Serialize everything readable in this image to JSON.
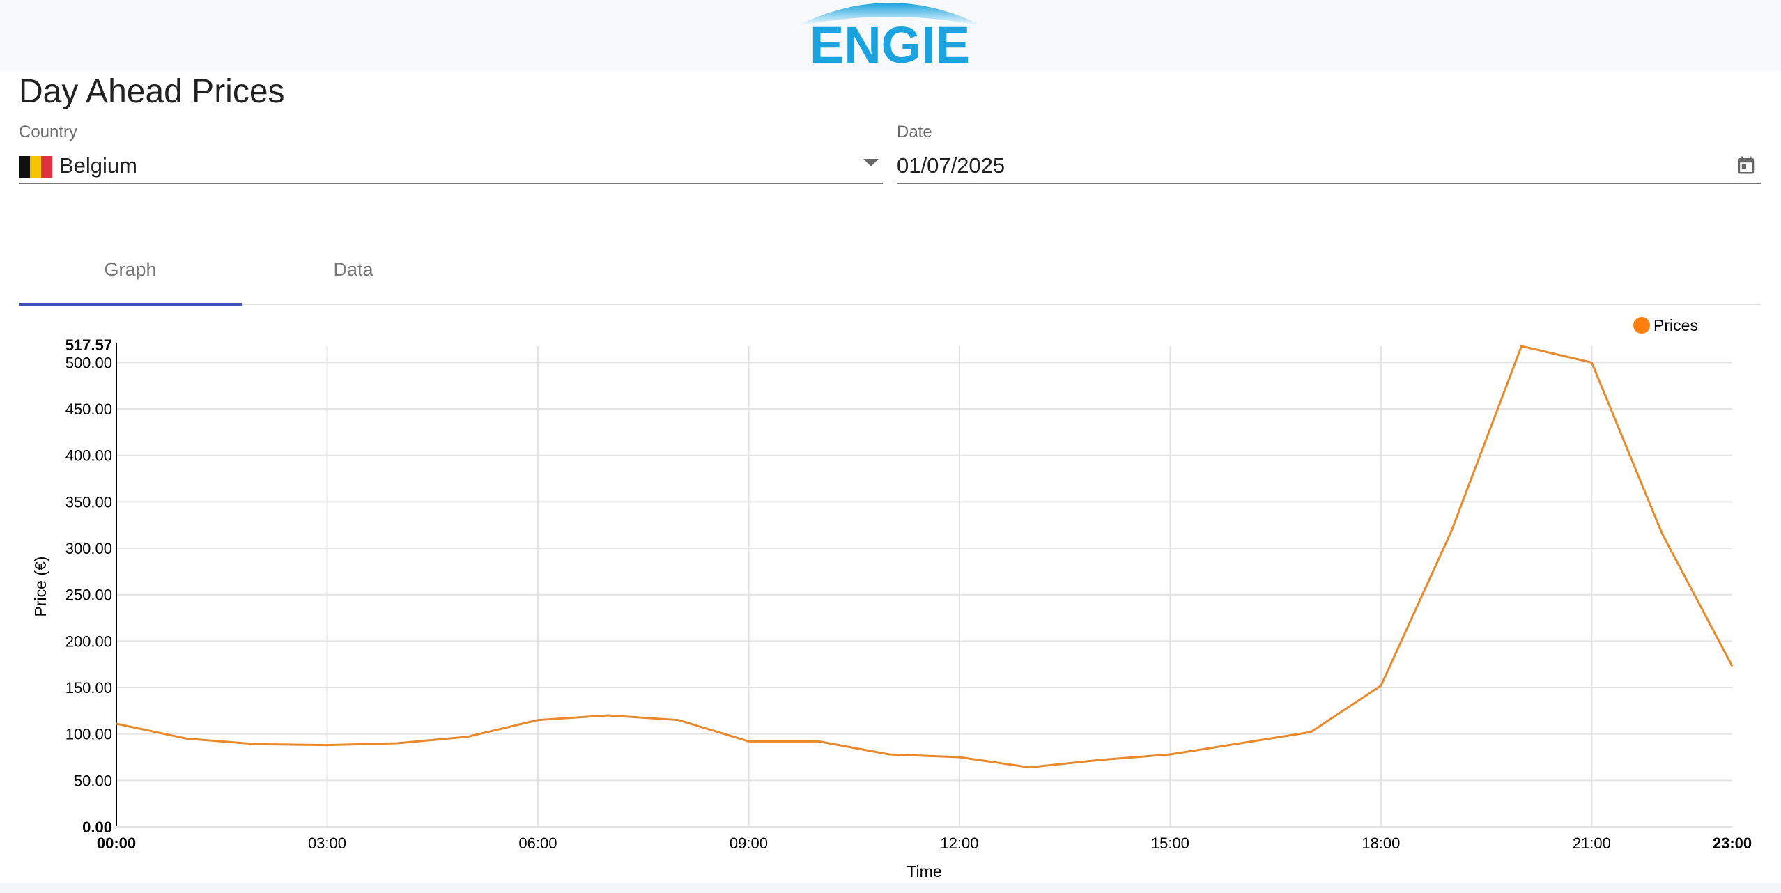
{
  "header": {
    "brand": "ENGIE",
    "logo_icon": "engie-logo"
  },
  "page": {
    "title": "Day Ahead Prices"
  },
  "filters": {
    "country": {
      "label": "Country",
      "value": "Belgium",
      "flag_icon": "belgium-flag-icon",
      "flag_colors": [
        "#111111",
        "#f5c400",
        "#e03140"
      ]
    },
    "date": {
      "label": "Date",
      "value": "01/07/2025"
    }
  },
  "tabs": [
    {
      "label": "Graph",
      "selected": true
    },
    {
      "label": "Data",
      "selected": false
    }
  ],
  "colors": {
    "accent": "#3f51b5",
    "series": "#e8892c",
    "legend_dot": "#ff7f0e",
    "logo": "#1aa3df"
  },
  "chart_data": {
    "type": "line",
    "xlabel": "Time",
    "ylabel": "Price (€)",
    "ylim": [
      0,
      517.57
    ],
    "y_max_label": "517.57",
    "y_ticks": [
      "0.00",
      "50.00",
      "100.00",
      "150.00",
      "200.00",
      "250.00",
      "300.00",
      "350.00",
      "400.00",
      "450.00",
      "500.00"
    ],
    "x_ticks": [
      "00:00",
      "03:00",
      "06:00",
      "09:00",
      "12:00",
      "15:00",
      "18:00",
      "21:00",
      "23:00"
    ],
    "grid": true,
    "legend": "top-right",
    "series": [
      {
        "name": "Prices",
        "x": [
          "00:00",
          "01:00",
          "02:00",
          "03:00",
          "04:00",
          "05:00",
          "06:00",
          "07:00",
          "08:00",
          "09:00",
          "10:00",
          "11:00",
          "12:00",
          "13:00",
          "14:00",
          "15:00",
          "16:00",
          "17:00",
          "18:00",
          "19:00",
          "20:00",
          "21:00",
          "22:00",
          "23:00"
        ],
        "values": [
          111,
          95,
          89,
          88,
          90,
          97,
          115,
          120,
          115,
          92,
          92,
          78,
          75,
          64,
          72,
          78,
          90,
          102,
          152,
          318,
          517.57,
          500,
          316,
          173
        ]
      }
    ]
  }
}
